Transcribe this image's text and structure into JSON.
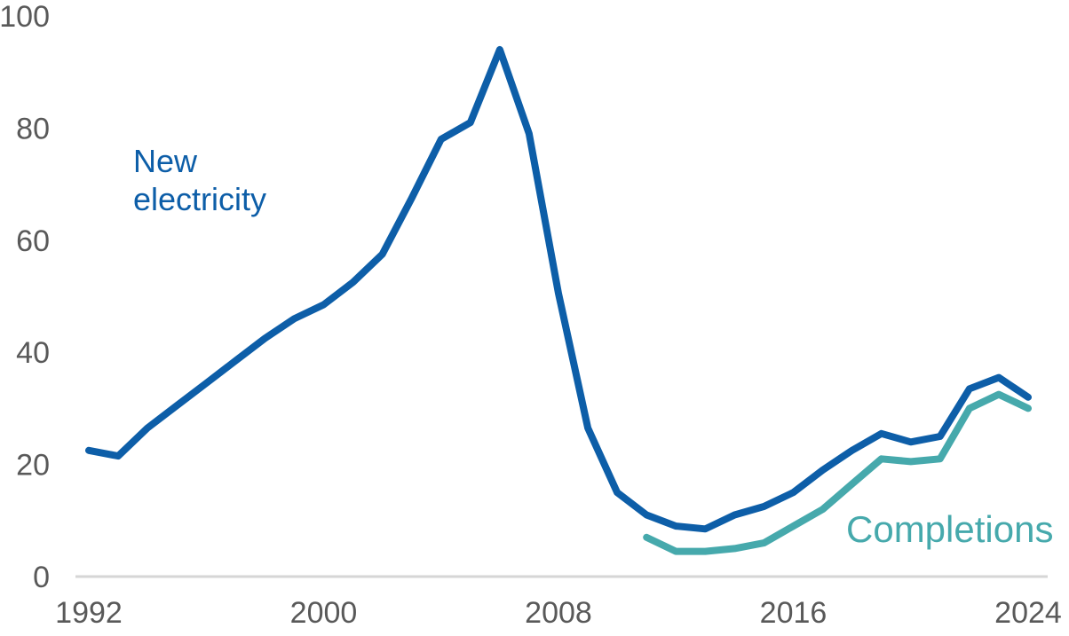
{
  "chart_data": {
    "type": "line",
    "title": "",
    "xlabel": "",
    "ylabel": "",
    "ylim": [
      0,
      100
    ],
    "xlim": [
      1992,
      2024
    ],
    "yticks": [
      0,
      20,
      40,
      60,
      80,
      100
    ],
    "xticks": [
      1992,
      2000,
      2008,
      2016,
      2024
    ],
    "grid": "baseline-only",
    "legend_position": "inline-annotations",
    "axis_line_color": "#d6d6d6",
    "tick_label_color": "#595959",
    "series": [
      {
        "name": "New electricity",
        "color": "#0d5ea8",
        "start_year": 1992,
        "values": [
          22.5,
          21.5,
          26.5,
          30.5,
          34.5,
          38.5,
          42.5,
          46,
          48.5,
          52.5,
          57.5,
          67.5,
          78,
          81,
          94,
          79,
          50.5,
          26.5,
          15,
          11,
          9,
          8.5,
          11,
          12.5,
          15,
          19,
          22.5,
          25.5,
          24,
          25,
          33.5,
          35.5,
          32
        ]
      },
      {
        "name": "Completions",
        "color": "#46a9ac",
        "start_year": 2011,
        "values": [
          7,
          4.5,
          4.5,
          5,
          6,
          9,
          12,
          16.5,
          21,
          20.5,
          21,
          30,
          32.5,
          30
        ]
      }
    ]
  },
  "labels": {
    "new_electricity": {
      "line1": "New",
      "line2": "electricity"
    },
    "completions": "Completions"
  }
}
